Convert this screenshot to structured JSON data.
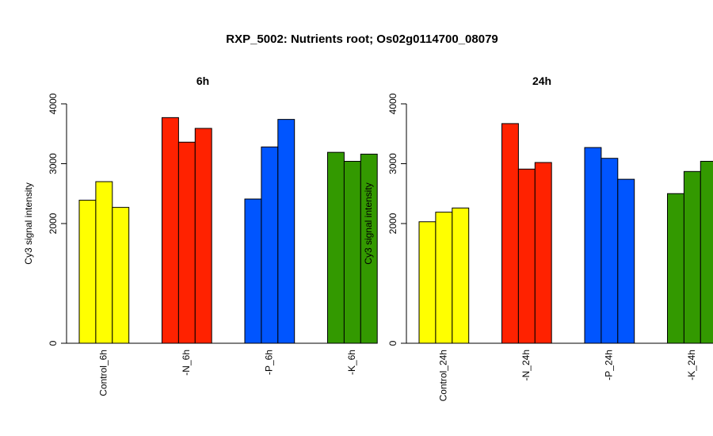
{
  "title": "RXP_5002: Nutrients root; Os02g0114700_08079",
  "colors": {
    "yellow": "#ffff00",
    "red": "#ff2200",
    "blue": "#0055ff",
    "green": "#339900"
  },
  "chart_data": [
    {
      "type": "bar",
      "title": "6h",
      "ylabel": "Cy3 signal intensity",
      "xlabel": "",
      "ylim": [
        0,
        4000
      ],
      "yticks": [
        0,
        2000,
        3000,
        4000
      ],
      "categories": [
        "Control_6h",
        "-N_6h",
        "-P_6h",
        "-K_6h"
      ],
      "groups": [
        {
          "name": "Control_6h",
          "color": "#ffff00",
          "values": [
            2390,
            2700,
            2270
          ]
        },
        {
          "name": "-N_6h",
          "color": "#ff2200",
          "values": [
            3770,
            3360,
            3590
          ]
        },
        {
          "name": "-P_6h",
          "color": "#0055ff",
          "values": [
            2410,
            3280,
            3740
          ]
        },
        {
          "name": "-K_6h",
          "color": "#339900",
          "values": [
            3190,
            3040,
            3160
          ]
        }
      ]
    },
    {
      "type": "bar",
      "title": "24h",
      "ylabel": "Cy3 signal intensity",
      "xlabel": "",
      "ylim": [
        0,
        4000
      ],
      "yticks": [
        0,
        2000,
        3000,
        4000
      ],
      "categories": [
        "Control_24h",
        "-N_24h",
        "-P_24h",
        "-K_24h"
      ],
      "groups": [
        {
          "name": "Control_24h",
          "color": "#ffff00",
          "values": [
            2030,
            2190,
            2260
          ]
        },
        {
          "name": "-N_24h",
          "color": "#ff2200",
          "values": [
            3670,
            2910,
            3020
          ]
        },
        {
          "name": "-P_24h",
          "color": "#0055ff",
          "values": [
            3270,
            3090,
            2740
          ]
        },
        {
          "name": "-K_24h",
          "color": "#339900",
          "values": [
            2500,
            2870,
            3040
          ]
        }
      ]
    }
  ]
}
